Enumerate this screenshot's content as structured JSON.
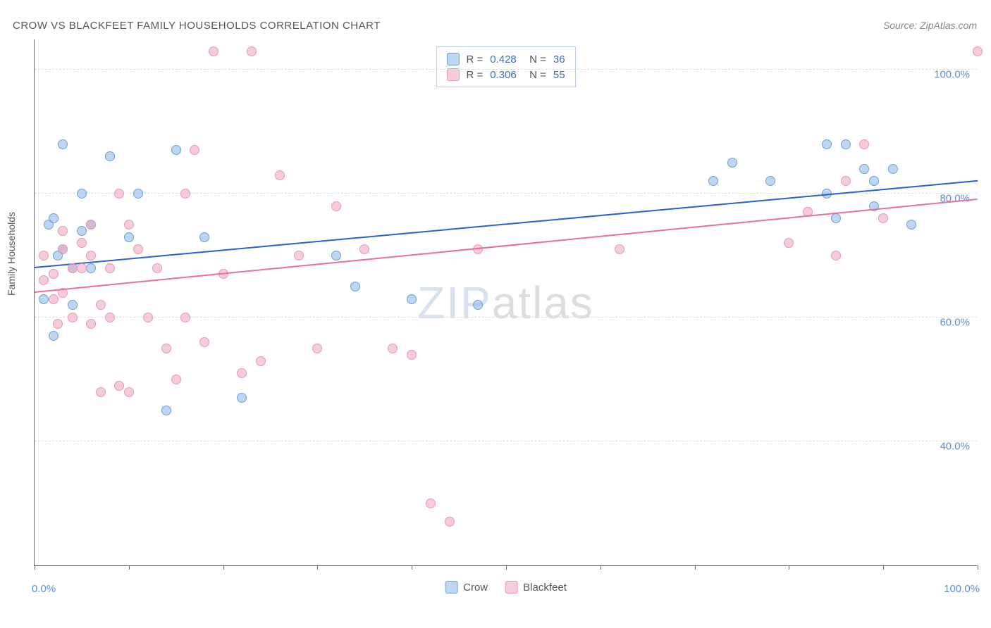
{
  "title": "CROW VS BLACKFEET FAMILY HOUSEHOLDS CORRELATION CHART",
  "source": "Source: ZipAtlas.com",
  "y_axis_label": "Family Households",
  "watermark": {
    "part1": "ZIP",
    "part2": "atlas"
  },
  "chart": {
    "type": "scatter",
    "background_color": "#ffffff",
    "grid_color": "#dddddd",
    "axis_color": "#666666",
    "xlim": [
      0,
      100
    ],
    "ylim": [
      20,
      105
    ],
    "x_ticks": [
      0,
      10,
      20,
      30,
      40,
      50,
      60,
      70,
      80,
      90,
      100
    ],
    "y_gridlines": [
      40,
      60,
      80,
      100
    ],
    "y_tick_labels": [
      "40.0%",
      "60.0%",
      "80.0%",
      "100.0%"
    ],
    "x_start_label": "0.0%",
    "x_end_label": "100.0%",
    "marker_radius": 7,
    "series": [
      {
        "name": "Crow",
        "fill": "rgba(135,180,230,0.55)",
        "stroke": "#6aa0d8",
        "trend_color": "#2a62c9",
        "r": "0.428",
        "n": "36",
        "trend": {
          "x1": 0,
          "y1": 68,
          "x2": 100,
          "y2": 82
        },
        "points": [
          [
            1,
            63
          ],
          [
            1.5,
            75
          ],
          [
            2,
            76
          ],
          [
            2.5,
            70
          ],
          [
            2,
            57
          ],
          [
            3,
            71
          ],
          [
            3,
            88
          ],
          [
            4,
            68
          ],
          [
            4,
            62
          ],
          [
            5,
            74
          ],
          [
            5,
            80
          ],
          [
            6,
            68
          ],
          [
            6,
            75
          ],
          [
            8,
            86
          ],
          [
            10,
            73
          ],
          [
            11,
            80
          ],
          [
            14,
            45
          ],
          [
            15,
            87
          ],
          [
            18,
            73
          ],
          [
            22,
            47
          ],
          [
            32,
            70
          ],
          [
            34,
            65
          ],
          [
            40,
            63
          ],
          [
            47,
            62
          ],
          [
            72,
            82
          ],
          [
            74,
            85
          ],
          [
            78,
            82
          ],
          [
            84,
            80
          ],
          [
            84,
            88
          ],
          [
            86,
            88
          ],
          [
            88,
            84
          ],
          [
            89,
            82
          ],
          [
            89,
            78
          ],
          [
            91,
            84
          ],
          [
            93,
            75
          ],
          [
            85,
            76
          ]
        ]
      },
      {
        "name": "Blackfeet",
        "fill": "rgba(240,160,185,0.55)",
        "stroke": "#e29bb2",
        "trend_color": "#e76f9a",
        "r": "0.306",
        "n": "55",
        "trend": {
          "x1": 0,
          "y1": 64,
          "x2": 100,
          "y2": 79
        },
        "points": [
          [
            1,
            66
          ],
          [
            1,
            70
          ],
          [
            2,
            63
          ],
          [
            2,
            67
          ],
          [
            2.5,
            59
          ],
          [
            3,
            71
          ],
          [
            3,
            74
          ],
          [
            3,
            64
          ],
          [
            4,
            68
          ],
          [
            4,
            60
          ],
          [
            5,
            72
          ],
          [
            5,
            68
          ],
          [
            6,
            75
          ],
          [
            6,
            70
          ],
          [
            7,
            48
          ],
          [
            7,
            62
          ],
          [
            8,
            68
          ],
          [
            8,
            60
          ],
          [
            9,
            80
          ],
          [
            9,
            49
          ],
          [
            10,
            75
          ],
          [
            10,
            48
          ],
          [
            11,
            71
          ],
          [
            12,
            60
          ],
          [
            13,
            68
          ],
          [
            14,
            55
          ],
          [
            15,
            50
          ],
          [
            16,
            80
          ],
          [
            16,
            60
          ],
          [
            17,
            87
          ],
          [
            18,
            56
          ],
          [
            19,
            103
          ],
          [
            20,
            67
          ],
          [
            22,
            51
          ],
          [
            23,
            103
          ],
          [
            24,
            53
          ],
          [
            26,
            83
          ],
          [
            28,
            70
          ],
          [
            30,
            55
          ],
          [
            32,
            78
          ],
          [
            35,
            71
          ],
          [
            38,
            55
          ],
          [
            40,
            54
          ],
          [
            42,
            30
          ],
          [
            44,
            27
          ],
          [
            47,
            71
          ],
          [
            62,
            71
          ],
          [
            80,
            72
          ],
          [
            82,
            77
          ],
          [
            85,
            70
          ],
          [
            86,
            82
          ],
          [
            88,
            88
          ],
          [
            90,
            76
          ],
          [
            100,
            103
          ],
          [
            6,
            59
          ]
        ]
      }
    ]
  },
  "legend_bottom": [
    {
      "label": "Crow",
      "fill": "rgba(135,180,230,0.55)",
      "stroke": "#6aa0d8"
    },
    {
      "label": "Blackfeet",
      "fill": "rgba(240,160,185,0.55)",
      "stroke": "#e29bb2"
    }
  ]
}
